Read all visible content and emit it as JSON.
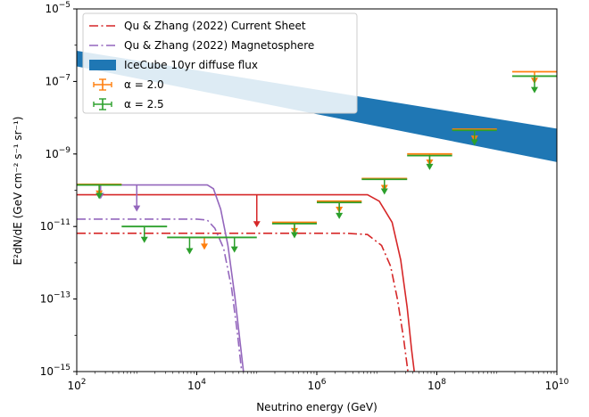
{
  "chart_data": {
    "type": "line",
    "xlabel": "Neutrino energy (GeV)",
    "ylabel": "E²dN/dE (GeV cm⁻² s⁻¹ sr⁻¹)",
    "xscale": "log",
    "yscale": "log",
    "xlim": [
      100,
      10000000000
    ],
    "ylim": [
      1e-15,
      1e-05
    ],
    "x_ticks": [
      {
        "value": 100,
        "mant": "10",
        "exp": "2"
      },
      {
        "value": 10000,
        "mant": "10",
        "exp": "4"
      },
      {
        "value": 1000000,
        "mant": "10",
        "exp": "6"
      },
      {
        "value": 100000000,
        "mant": "10",
        "exp": "8"
      },
      {
        "value": 10000000000,
        "mant": "10",
        "exp": "10"
      }
    ],
    "y_ticks": [
      {
        "value": 1e-15,
        "mant": "10",
        "exp": "−15"
      },
      {
        "value": 1e-13,
        "mant": "10",
        "exp": "−13"
      },
      {
        "value": 1e-11,
        "mant": "10",
        "exp": "−11"
      },
      {
        "value": 1e-09,
        "mant": "10",
        "exp": "−9"
      },
      {
        "value": 1e-07,
        "mant": "10",
        "exp": "−7"
      },
      {
        "value": 1e-05,
        "mant": "10",
        "exp": "−5"
      }
    ],
    "legend_position": "top-left",
    "legend": [
      {
        "label": "Qu & Zhang (2022) Current Sheet",
        "kind": "dashdot",
        "color": "#d62728"
      },
      {
        "label": "Qu & Zhang (2022) Magnetosphere",
        "kind": "dashdot",
        "color": "#9467bd"
      },
      {
        "label": "IceCube 10yr diffuse flux",
        "kind": "band",
        "color": "#1f77b4"
      },
      {
        "label": "α = 2.0",
        "kind": "errorbar",
        "color": "#ff7f0e"
      },
      {
        "label": "α = 2.5",
        "kind": "errorbar",
        "color": "#2ca02c"
      }
    ],
    "series": [
      {
        "name": "Qu & Zhang (2022) Current Sheet",
        "style": "dashdot",
        "color": "#d62728",
        "points": [
          [
            100,
            6.5e-12
          ],
          [
            3000000,
            6.5e-12
          ],
          [
            7000000,
            6e-12
          ],
          [
            12000000,
            3e-12
          ],
          [
            17000000,
            8e-13
          ],
          [
            22000000,
            1e-13
          ],
          [
            28000000,
            8e-15
          ],
          [
            33000000,
            1e-15
          ]
        ]
      },
      {
        "name": "Qu & Zhang (2022) Magnetosphere",
        "style": "dashdot",
        "color": "#9467bd",
        "points": [
          [
            100,
            1.6e-11
          ],
          [
            10000,
            1.6e-11
          ],
          [
            15000,
            1.5e-11
          ],
          [
            20000,
            9e-12
          ],
          [
            28000,
            2.5e-12
          ],
          [
            38000,
            2e-13
          ],
          [
            48000,
            1e-14
          ],
          [
            56000,
            1e-15
          ]
        ]
      },
      {
        "style": "solid",
        "color": "#d62728",
        "points": [
          [
            100,
            7.5e-11
          ],
          [
            7000000,
            7.5e-11
          ],
          [
            11000000,
            5e-11
          ],
          [
            18000000,
            1.3e-11
          ],
          [
            25000000,
            1.2e-12
          ],
          [
            32000000,
            6e-14
          ],
          [
            38000000,
            4e-15
          ],
          [
            42000000,
            1e-15
          ]
        ]
      },
      {
        "style": "solid",
        "color": "#9467bd",
        "points": [
          [
            100,
            1.4e-10
          ],
          [
            15000,
            1.4e-10
          ],
          [
            19000,
            1.1e-10
          ],
          [
            25000,
            3e-11
          ],
          [
            33000,
            3e-12
          ],
          [
            43000,
            1.2e-13
          ],
          [
            53000,
            6e-15
          ],
          [
            60000,
            1e-15
          ]
        ]
      }
    ],
    "band": {
      "name": "IceCube 10yr diffuse flux",
      "color": "#1f77b4",
      "x": [
        100,
        10000000000
      ],
      "upper": [
        7e-07,
        5e-09
      ],
      "lower": [
        2.6e-07,
        6e-10
      ]
    },
    "current_sheet_arrow": {
      "x": 100000,
      "y_top": 7.5e-11,
      "y_bottom": 1e-11,
      "color": "#d62728"
    },
    "magnetosphere_arrows": [
      {
        "x": 250,
        "y_top": 1.4e-10,
        "y_bottom": 6e-11
      },
      {
        "x": 1000,
        "y_top": 1.4e-10,
        "y_bottom": 2.7e-11
      }
    ],
    "upper_limits_alpha_2_0": [
      {
        "x_low": 100,
        "x_high": 560,
        "y": 1.45e-10,
        "y_arrow": 7e-11
      },
      {
        "x_low": 5600,
        "x_high": 32000,
        "y": 5e-12,
        "y_arrow": 2.4e-12
      },
      {
        "x_low": 180000,
        "x_high": 1000000,
        "y": 1.3e-11,
        "y_arrow": 6.5e-12
      },
      {
        "x_low": 1000000,
        "x_high": 5600000,
        "y": 5e-11,
        "y_arrow": 2.5e-11
      },
      {
        "x_low": 5600000,
        "x_high": 32000000,
        "y": 2.1e-10,
        "y_arrow": 1e-10
      },
      {
        "x_low": 32000000,
        "x_high": 180000000,
        "y": 1e-09,
        "y_arrow": 5e-10
      },
      {
        "x_low": 180000000,
        "x_high": 1000000000,
        "y": 4.8e-09,
        "y_arrow": 2.3e-09
      },
      {
        "x_low": 1800000000,
        "x_high": 10000000000,
        "y": 1.85e-07,
        "y_arrow": 9e-08
      }
    ],
    "upper_limits_alpha_2_5": [
      {
        "x_low": 100,
        "x_high": 560,
        "y": 1.4e-10,
        "y_arrow": 6e-11
      },
      {
        "x_low": 560,
        "x_high": 3200,
        "y": 1e-11,
        "y_arrow": 3.7e-12
      },
      {
        "x_low": 3200,
        "x_high": 18000,
        "y": 5e-12,
        "y_arrow": 1.8e-12
      },
      {
        "x_low": 18000,
        "x_high": 100000,
        "y": 5e-12,
        "y_arrow": 2e-12
      },
      {
        "x_low": 180000,
        "x_high": 1000000,
        "y": 1.2e-11,
        "y_arrow": 5e-12
      },
      {
        "x_low": 1000000,
        "x_high": 5600000,
        "y": 4.6e-11,
        "y_arrow": 1.7e-11
      },
      {
        "x_low": 5600000,
        "x_high": 32000000,
        "y": 2e-10,
        "y_arrow": 8e-11
      },
      {
        "x_low": 32000000,
        "x_high": 180000000,
        "y": 9e-10,
        "y_arrow": 3.8e-10
      },
      {
        "x_low": 180000000,
        "x_high": 1000000000,
        "y": 4.5e-09,
        "y_arrow": 1.8e-09
      },
      {
        "x_low": 1800000000,
        "x_high": 10000000000,
        "y": 1.4e-07,
        "y_arrow": 5e-08
      }
    ]
  }
}
